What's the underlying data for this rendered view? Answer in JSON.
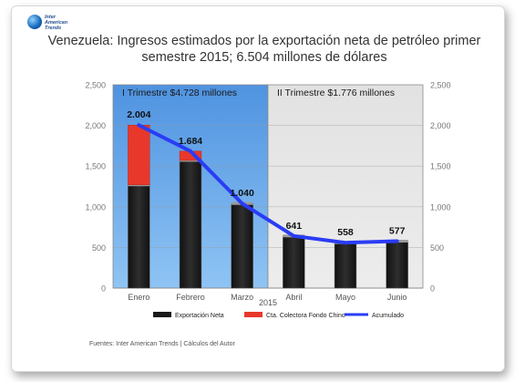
{
  "logo": {
    "line1": "Inter",
    "line2": "American",
    "line3": "Trends"
  },
  "title": "Venezuela: Ingresos estimados por la exportación neta de petróleo primer semestre 2015; 6.504 millones de dólares",
  "footer": "Fuentes: Inter American Trends | Cálculos del Autor",
  "chart_data": {
    "type": "bar",
    "categories": [
      "Enero",
      "Febrero",
      "Marzo",
      "Abril",
      "Mayo",
      "Junio"
    ],
    "xlabel": "2015",
    "ylim": [
      0,
      2500
    ],
    "yticks": [
      "0",
      "500",
      "1,000",
      "1,500",
      "2,000",
      "2,500"
    ],
    "yticks_right": [
      "0",
      "500",
      "1,000",
      "1,500",
      "2,000",
      "2,500"
    ],
    "series": [
      {
        "name": "Exportación Neta",
        "kind": "bar-stacked",
        "color": "#1a1a1a",
        "values": [
          1270,
          1570,
          1040,
          641,
          558,
          577
        ]
      },
      {
        "name": "Cta. Colectora Fondo Chino",
        "kind": "bar-stacked",
        "color": "#e8382c",
        "values": [
          734,
          114,
          0,
          0,
          0,
          0
        ]
      },
      {
        "name": "Acumulado",
        "kind": "line",
        "color": "#2a3cf5",
        "values": [
          2004,
          1684,
          1040,
          641,
          558,
          577
        ]
      }
    ],
    "data_labels": [
      "2.004",
      "1.684",
      "1.040",
      "641",
      "558",
      "577"
    ],
    "regions": [
      {
        "label": "I Trimestre $4.728 millones",
        "from": 0,
        "to": 2,
        "color": "#5a9ee6"
      },
      {
        "label": "II Trimestre $1.776 millones",
        "from": 3,
        "to": 5,
        "color": "#e6e6e6"
      }
    ],
    "grid": true,
    "legend_position": "bottom"
  }
}
